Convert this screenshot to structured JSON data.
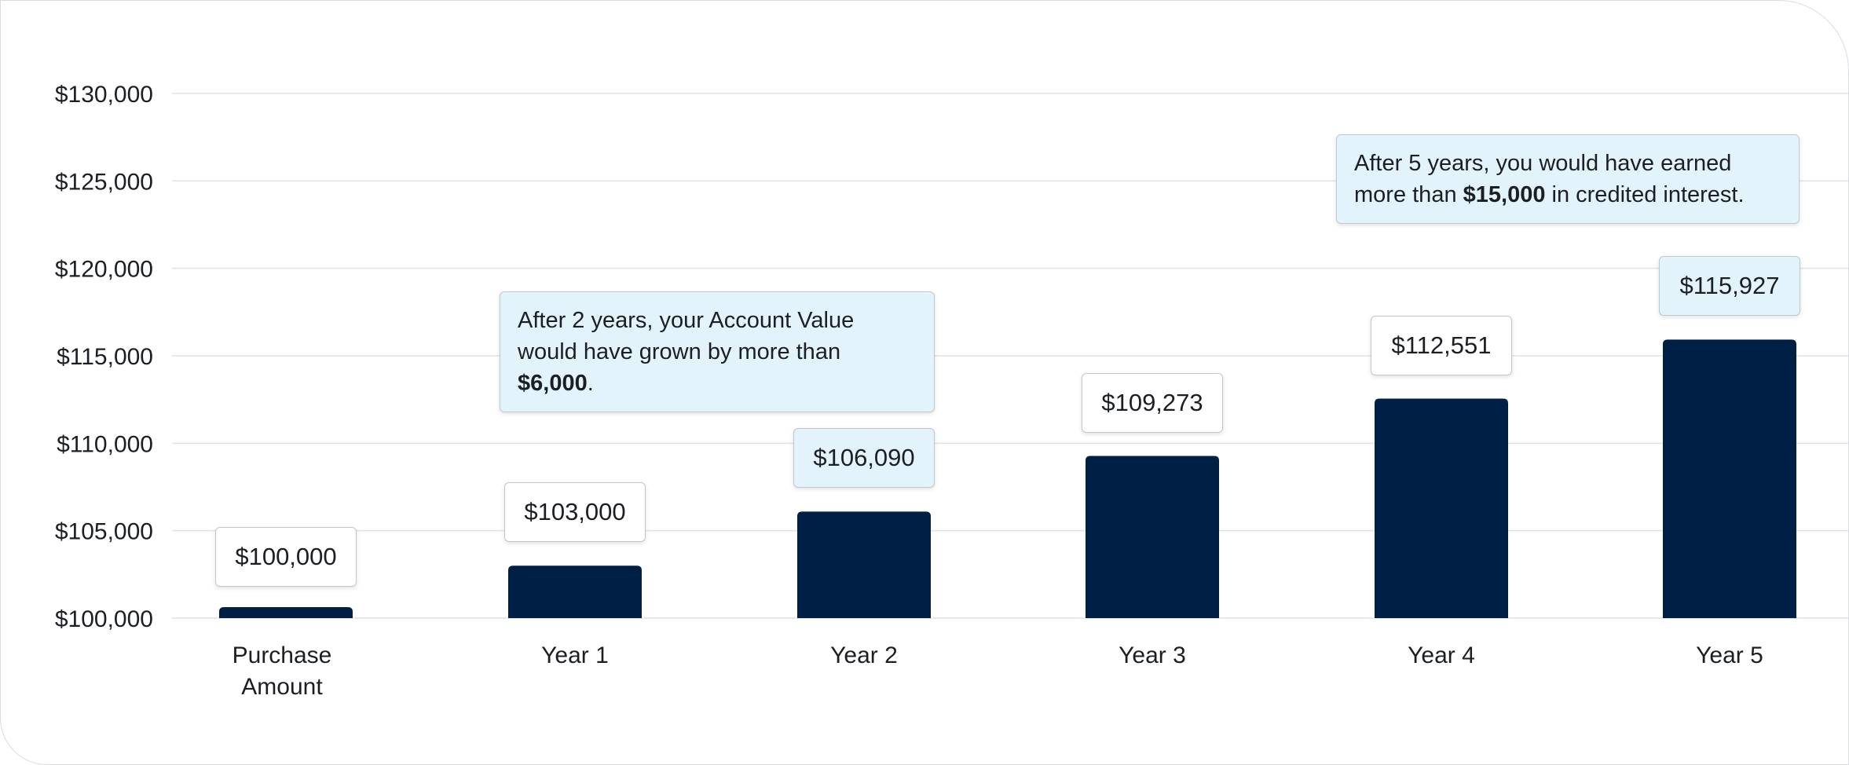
{
  "chart_data": {
    "type": "bar",
    "categories": [
      [
        "Purchase",
        "Amount"
      ],
      [
        "Year 1"
      ],
      [
        "Year 2"
      ],
      [
        "Year 3"
      ],
      [
        "Year 4"
      ],
      [
        "Year 5"
      ]
    ],
    "values": [
      100000,
      103000,
      106090,
      109273,
      112551,
      115927
    ],
    "data_labels": [
      "$100,000",
      "$103,000",
      "$106,090",
      "$109,273",
      "$112,551",
      "$115,927"
    ],
    "highlighted_labels": [
      2,
      5
    ],
    "yticks": [
      "$100,000",
      "$105,000",
      "$110,000",
      "$115,000",
      "$120,000",
      "$125,000",
      "$130,000"
    ],
    "ylim": [
      100000,
      130000
    ],
    "grid": true,
    "bar_color": "#001f44",
    "highlight_color": "#e3f3fc",
    "annotations": [
      {
        "anchor_category": 2,
        "pre": "After 2 years, your Account Value would have grown by more than ",
        "bold": "$6,000",
        "post": "."
      },
      {
        "anchor_category": 5,
        "pre": "After 5 years, you would have earned more than ",
        "bold": "$15,000",
        "post": " in credited interest."
      }
    ]
  }
}
